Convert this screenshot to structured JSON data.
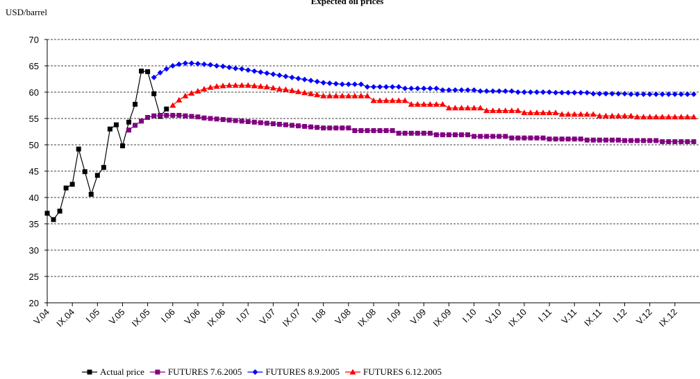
{
  "chart_data": {
    "type": "line",
    "title": "Expected oil prices",
    "y_label": "USD/barrel",
    "categories": [
      "V.04",
      null,
      null,
      null,
      "IX.04",
      null,
      null,
      null,
      "I.05",
      null,
      null,
      null,
      "V.05",
      null,
      null,
      null,
      "IX.05",
      null,
      null,
      null,
      "I.06",
      null,
      null,
      null,
      "V.06",
      null,
      null,
      null,
      "IX.06",
      null,
      null,
      null,
      "I.07",
      null,
      null,
      null,
      "V.07",
      null,
      null,
      null,
      "IX.07",
      null,
      null,
      null,
      "I.08",
      null,
      null,
      null,
      "V.08",
      null,
      null,
      null,
      "IX.08",
      null,
      null,
      null,
      "I.09",
      null,
      null,
      null,
      "V.09",
      null,
      null,
      null,
      "IX.09",
      null,
      null,
      null,
      "I.10",
      null,
      null,
      null,
      "V.10",
      null,
      null,
      null,
      "IX.10",
      null,
      null,
      null,
      "I.11",
      null,
      null,
      null,
      "V.11",
      null,
      null,
      null,
      "IX.11",
      null,
      null,
      null,
      "I.12",
      null,
      null,
      null,
      "V.12",
      null,
      null,
      null,
      "IX.12",
      null,
      null,
      null
    ],
    "series": [
      {
        "name": "Actual price",
        "color": "#000000",
        "marker": "square",
        "values": [
          37.0,
          35.8,
          37.4,
          41.8,
          42.5,
          49.2,
          44.9,
          40.6,
          44.2,
          45.7,
          53.0,
          53.8,
          49.8,
          54.3,
          57.7,
          64.0,
          63.9,
          59.7,
          55.4,
          56.8,
          null,
          null,
          null,
          null,
          null,
          null,
          null,
          null,
          null,
          null,
          null,
          null,
          null,
          null,
          null,
          null,
          null,
          null,
          null,
          null,
          null,
          null,
          null,
          null,
          null,
          null,
          null,
          null,
          null,
          null,
          null,
          null,
          null,
          null,
          null,
          null,
          null,
          null,
          null,
          null,
          null,
          null,
          null,
          null,
          null,
          null,
          null,
          null,
          null,
          null,
          null,
          null,
          null,
          null,
          null,
          null,
          null,
          null,
          null,
          null,
          null,
          null,
          null,
          null,
          null,
          null,
          null,
          null,
          null,
          null,
          null,
          null,
          null,
          null,
          null,
          null,
          null,
          null,
          null,
          null,
          null,
          null,
          null,
          null
        ]
      },
      {
        "name": "FUTURES 7.6.2005",
        "color": "#800080",
        "marker": "square",
        "values": [
          null,
          null,
          null,
          null,
          null,
          null,
          null,
          null,
          null,
          null,
          null,
          null,
          null,
          52.8,
          53.7,
          54.5,
          55.2,
          55.5,
          55.6,
          55.6,
          55.6,
          55.6,
          55.5,
          55.4,
          55.3,
          55.1,
          55.0,
          54.9,
          54.8,
          54.7,
          54.6,
          54.5,
          54.4,
          54.3,
          54.2,
          54.1,
          54.0,
          53.9,
          53.8,
          53.7,
          53.6,
          53.5,
          53.4,
          53.3,
          53.2,
          53.2,
          53.2,
          53.2,
          53.2,
          52.7,
          52.7,
          52.7,
          52.7,
          52.7,
          52.7,
          52.7,
          52.2,
          52.2,
          52.2,
          52.2,
          52.2,
          52.2,
          51.9,
          51.9,
          51.9,
          51.9,
          51.9,
          51.9,
          51.6,
          51.6,
          51.6,
          51.6,
          51.6,
          51.6,
          51.3,
          51.3,
          51.3,
          51.3,
          51.3,
          51.3,
          51.1,
          51.1,
          51.1,
          51.1,
          51.1,
          51.1,
          50.9,
          50.9,
          50.9,
          50.9,
          50.9,
          50.9,
          50.8,
          50.8,
          50.8,
          50.8,
          50.8,
          50.8,
          50.6,
          50.6,
          50.6,
          50.6,
          50.6,
          50.6
        ]
      },
      {
        "name": "FUTURES 8.9.2005",
        "color": "#0000ff",
        "marker": "diamond",
        "values": [
          null,
          null,
          null,
          null,
          null,
          null,
          null,
          null,
          null,
          null,
          null,
          null,
          null,
          null,
          null,
          null,
          null,
          62.8,
          63.7,
          64.4,
          65.0,
          65.3,
          65.5,
          65.5,
          65.4,
          65.3,
          65.2,
          65.0,
          64.9,
          64.7,
          64.5,
          64.4,
          64.2,
          64.0,
          63.8,
          63.6,
          63.4,
          63.2,
          63.0,
          62.8,
          62.6,
          62.4,
          62.2,
          62.0,
          61.8,
          61.7,
          61.6,
          61.5,
          61.5,
          61.5,
          61.5,
          61.0,
          61.0,
          61.0,
          61.0,
          61.0,
          61.0,
          60.7,
          60.7,
          60.7,
          60.7,
          60.7,
          60.7,
          60.4,
          60.4,
          60.4,
          60.4,
          60.4,
          60.4,
          60.2,
          60.2,
          60.2,
          60.2,
          60.2,
          60.2,
          60.0,
          60.0,
          60.0,
          60.0,
          60.0,
          60.0,
          59.9,
          59.9,
          59.9,
          59.9,
          59.9,
          59.9,
          59.7,
          59.7,
          59.7,
          59.7,
          59.7,
          59.7,
          59.6,
          59.6,
          59.6,
          59.6,
          59.6,
          59.6,
          59.6,
          59.6,
          59.6,
          59.6,
          59.6
        ]
      },
      {
        "name": "FUTURES 6.12.2005",
        "color": "#ff0000",
        "marker": "triangle",
        "values": [
          null,
          null,
          null,
          null,
          null,
          null,
          null,
          null,
          null,
          null,
          null,
          null,
          null,
          null,
          null,
          null,
          null,
          null,
          null,
          null,
          57.5,
          58.5,
          59.3,
          59.8,
          60.2,
          60.6,
          60.9,
          61.1,
          61.2,
          61.3,
          61.3,
          61.3,
          61.3,
          61.2,
          61.1,
          61.0,
          60.8,
          60.6,
          60.5,
          60.3,
          60.1,
          59.9,
          59.7,
          59.5,
          59.3,
          59.3,
          59.3,
          59.3,
          59.3,
          59.3,
          59.3,
          59.3,
          58.4,
          58.4,
          58.4,
          58.4,
          58.4,
          58.4,
          57.7,
          57.7,
          57.7,
          57.7,
          57.7,
          57.7,
          57.0,
          57.0,
          57.0,
          57.0,
          57.0,
          57.0,
          56.5,
          56.5,
          56.5,
          56.5,
          56.5,
          56.5,
          56.1,
          56.1,
          56.1,
          56.1,
          56.1,
          56.1,
          55.8,
          55.8,
          55.8,
          55.8,
          55.8,
          55.8,
          55.5,
          55.5,
          55.5,
          55.5,
          55.5,
          55.5,
          55.3,
          55.3,
          55.3,
          55.3,
          55.3,
          55.3,
          55.3,
          55.3,
          55.3,
          55.3
        ]
      }
    ],
    "ylim": [
      20,
      70
    ],
    "yticks": [
      20,
      25,
      30,
      35,
      40,
      45,
      50,
      55,
      60,
      65,
      70
    ],
    "grid": true,
    "legend": "bottom"
  }
}
